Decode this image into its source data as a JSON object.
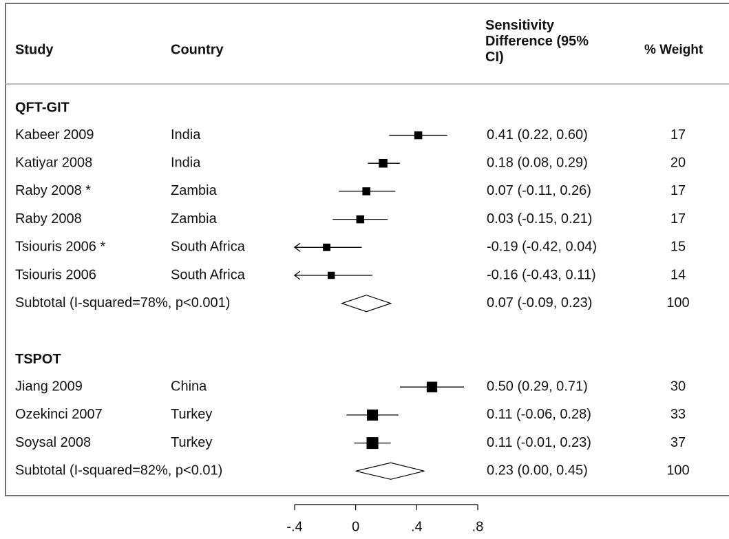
{
  "chart_data": {
    "type": "forest",
    "headers": {
      "study": "Study",
      "country": "Country",
      "effect": "Sensitivity Difference (95% CI)",
      "weight": "% Weight"
    },
    "xlim": [
      -0.4,
      0.8
    ],
    "xticks": [
      {
        "value": -0.4,
        "label": "-.4"
      },
      0,
      {
        "value": 0.4,
        "label": ".4"
      },
      {
        "value": 0.8,
        "label": ".8"
      }
    ],
    "color": "#000000",
    "groups": [
      {
        "name": "QFT-GIT",
        "studies": [
          {
            "study": "Kabeer 2009",
            "country": "India",
            "estimate": 0.41,
            "lower": 0.22,
            "upper": 0.6,
            "value_label": "0.41 (0.22, 0.60)",
            "weight": 17
          },
          {
            "study": "Katiyar 2008",
            "country": "India",
            "estimate": 0.18,
            "lower": 0.08,
            "upper": 0.29,
            "value_label": "0.18 (0.08, 0.29)",
            "weight": 20
          },
          {
            "study": "Raby 2008 *",
            "country": "Zambia",
            "estimate": 0.07,
            "lower": -0.11,
            "upper": 0.26,
            "value_label": "0.07 (-0.11, 0.26)",
            "weight": 17
          },
          {
            "study": "Raby 2008",
            "country": "Zambia",
            "estimate": 0.03,
            "lower": -0.15,
            "upper": 0.21,
            "value_label": "0.03 (-0.15, 0.21)",
            "weight": 17
          },
          {
            "study": "Tsiouris 2006 *",
            "country": "South Africa",
            "estimate": -0.19,
            "lower": -0.42,
            "upper": 0.04,
            "value_label": "-0.19 (-0.42, 0.04)",
            "weight": 15
          },
          {
            "study": "Tsiouris 2006",
            "country": "South Africa",
            "estimate": -0.16,
            "lower": -0.43,
            "upper": 0.11,
            "value_label": "-0.16 (-0.43, 0.11)",
            "weight": 14
          }
        ],
        "subtotal": {
          "label": "Subtotal (I-squared=78%, p<0.001)",
          "estimate": 0.07,
          "lower": -0.09,
          "upper": 0.23,
          "value_label": "0.07 (-0.09, 0.23)",
          "weight": 100
        }
      },
      {
        "name": "TSPOT",
        "studies": [
          {
            "study": "Jiang 2009",
            "country": "China",
            "estimate": 0.5,
            "lower": 0.29,
            "upper": 0.71,
            "value_label": "0.50 (0.29, 0.71)",
            "weight": 30
          },
          {
            "study": "Ozekinci 2007",
            "country": "Turkey",
            "estimate": 0.11,
            "lower": -0.06,
            "upper": 0.28,
            "value_label": "0.11 (-0.06, 0.28)",
            "weight": 33
          },
          {
            "study": "Soysal 2008",
            "country": "Turkey",
            "estimate": 0.11,
            "lower": -0.01,
            "upper": 0.23,
            "value_label": "0.11 (-0.01, 0.23)",
            "weight": 37
          }
        ],
        "subtotal": {
          "label": "Subtotal (I-squared=82%, p<0.01)",
          "estimate": 0.23,
          "lower": 0.0,
          "upper": 0.45,
          "value_label": "0.23 (0.00, 0.45)",
          "weight": 100
        }
      }
    ]
  }
}
